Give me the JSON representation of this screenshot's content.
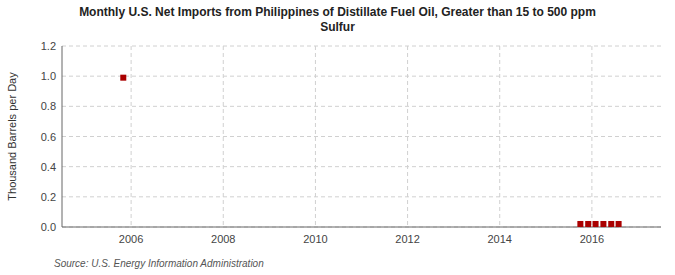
{
  "chart_data": {
    "type": "scatter",
    "title": "Monthly U.S. Net Imports from Philippines of Distillate Fuel Oil, Greater than 15 to 500 ppm\nSulfur",
    "ylabel": "Thousand Barrels per Day",
    "source": "Source: U.S. Energy Information Administration",
    "x": [
      2005.83,
      2015.75,
      2015.92,
      2016.08,
      2016.25,
      2016.42,
      2016.58
    ],
    "values": [
      0.99,
      0.02,
      0.02,
      0.02,
      0.02,
      0.02,
      0.02
    ],
    "color": "#aa0000",
    "marker": "square",
    "xlim": [
      2004.5,
      2017.5
    ],
    "ylim": [
      0,
      1.2
    ],
    "xticks": [
      2006,
      2008,
      2010,
      2012,
      2014,
      2016
    ],
    "yticks": [
      {
        "value": 0,
        "label": "0.0"
      },
      0.2,
      0.4,
      0.6,
      0.8,
      {
        "value": 1.0,
        "label": "1.0"
      },
      1.2
    ],
    "grid": true
  }
}
